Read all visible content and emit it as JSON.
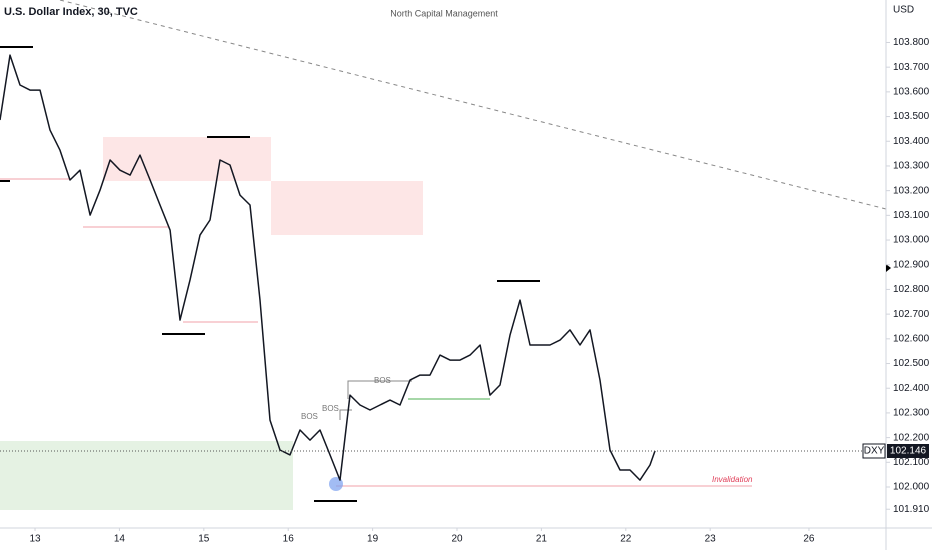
{
  "chart_data": {
    "type": "line",
    "title": "U.S. Dollar Index, 30, TVC",
    "subtitle": "North Capital Management",
    "currency": "USD",
    "symbol": "DXY",
    "last_price": 102.146,
    "annotations": [
      "BOS",
      "BOS",
      "BOS",
      "Invalidation"
    ],
    "color": "#131722",
    "x": [
      -0.415,
      -0.296,
      -0.178,
      -0.059,
      0.059,
      0.178,
      0.296,
      0.415,
      0.533,
      0.652,
      0.77,
      0.889,
      1.007,
      1.126,
      1.244,
      1.363,
      1.481,
      1.6,
      1.718,
      1.836,
      1.955,
      2.073,
      2.192,
      2.31,
      2.429,
      2.547,
      2.666,
      2.784,
      2.903,
      3.021,
      3.14,
      3.258,
      3.377,
      3.495,
      3.614,
      3.732,
      3.851,
      3.969,
      4.088,
      4.206,
      4.325,
      4.443,
      4.562,
      4.68,
      4.799,
      4.917,
      5.036,
      5.154,
      5.273,
      5.391,
      5.509,
      5.628,
      5.746,
      5.865,
      5.983,
      6.102,
      6.22,
      6.339,
      6.457,
      6.576,
      6.694,
      6.813,
      6.931,
      7.05,
      7.168,
      7.287,
      7.346
    ],
    "values": [
      103.486,
      103.749,
      103.628,
      103.607,
      103.607,
      103.445,
      103.364,
      103.243,
      103.283,
      103.101,
      103.202,
      103.324,
      103.283,
      103.263,
      103.344,
      103.243,
      103.142,
      103.04,
      102.676,
      102.838,
      103.02,
      103.081,
      103.324,
      103.304,
      103.182,
      103.142,
      102.757,
      102.271,
      102.15,
      102.13,
      102.231,
      102.19,
      102.231,
      102.13,
      102.028,
      102.372,
      102.332,
      102.312,
      102.332,
      102.352,
      102.332,
      102.433,
      102.453,
      102.453,
      102.534,
      102.514,
      102.514,
      102.534,
      102.575,
      102.372,
      102.413,
      102.615,
      102.757,
      102.575,
      102.575,
      102.575,
      102.595,
      102.636,
      102.575,
      102.636,
      102.433,
      102.15,
      102.069,
      102.069,
      102.028,
      102.089,
      102.146
    ],
    "xlim": [
      -0.415,
      10.083
    ],
    "xticks": [
      {
        "value": 0,
        "label": "13"
      },
      {
        "value": 1,
        "label": "14"
      },
      {
        "value": 2,
        "label": "15"
      },
      {
        "value": 3,
        "label": "16"
      },
      {
        "value": 4,
        "label": "19"
      },
      {
        "value": 5,
        "label": "20"
      },
      {
        "value": 6,
        "label": "21"
      },
      {
        "value": 7,
        "label": "22"
      },
      {
        "value": 8,
        "label": "23"
      },
      {
        "value": 9.17,
        "label": "26"
      }
    ],
    "ylim": [
      101.834,
      103.972
    ],
    "yticks": [
      {
        "value": 101.91,
        "label": "101.910"
      },
      {
        "value": 102.0,
        "label": "102.000"
      },
      {
        "value": 102.1,
        "label": "102.100"
      },
      {
        "value": 102.2,
        "label": "102.200"
      },
      {
        "value": 102.3,
        "label": "102.300"
      },
      {
        "value": 102.4,
        "label": "102.400"
      },
      {
        "value": 102.5,
        "label": "102.500"
      },
      {
        "value": 102.6,
        "label": "102.600"
      },
      {
        "value": 102.7,
        "label": "102.700"
      },
      {
        "value": 102.8,
        "label": "102.800"
      },
      {
        "value": 102.9,
        "label": "102.900"
      },
      {
        "value": 103.0,
        "label": "103.000"
      },
      {
        "value": 103.1,
        "label": "103.100"
      },
      {
        "value": 103.2,
        "label": "103.200"
      },
      {
        "value": 103.3,
        "label": "103.300"
      },
      {
        "value": 103.4,
        "label": "103.400"
      },
      {
        "value": 103.5,
        "label": "103.500"
      },
      {
        "value": 103.6,
        "label": "103.600"
      },
      {
        "value": 103.7,
        "label": "103.700"
      },
      {
        "value": 103.8,
        "label": "103.800"
      }
    ],
    "grid": false
  }
}
